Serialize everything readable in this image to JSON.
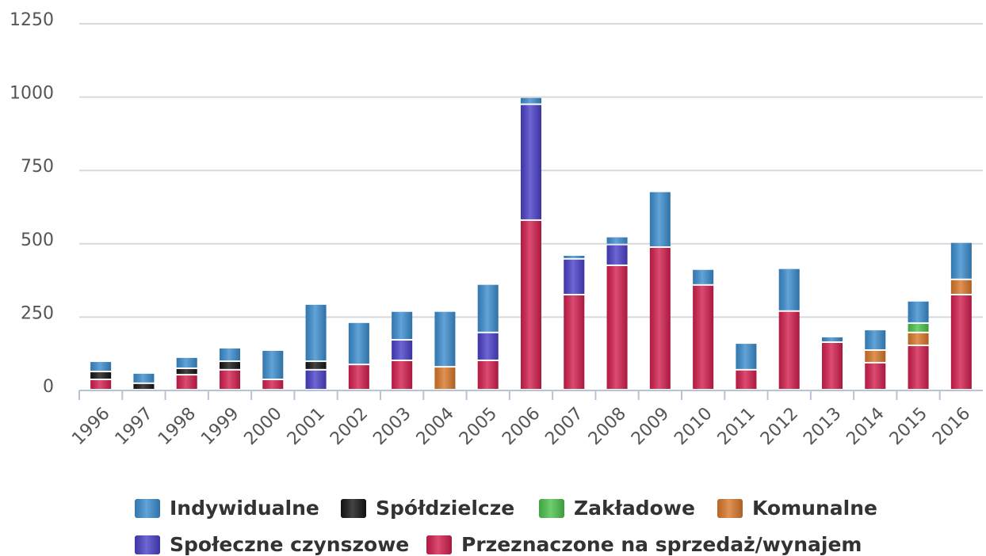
{
  "chart_data": {
    "type": "bar",
    "stacked": true,
    "categories": [
      "1996",
      "1997",
      "1998",
      "1999",
      "2000",
      "2001",
      "2002",
      "2003",
      "2004",
      "2005",
      "2006",
      "2007",
      "2008",
      "2009",
      "2010",
      "2011",
      "2012",
      "2013",
      "2014",
      "2015",
      "2016"
    ],
    "series": [
      {
        "name": "Indywidualne",
        "color": "#3b8dcf",
        "values": [
          35,
          35,
          38,
          46,
          100,
          195,
          144,
          98,
          190,
          165,
          24,
          13,
          27,
          190,
          54,
          91,
          146,
          19,
          70,
          76,
          127
        ]
      },
      {
        "name": "Spółdzielcze",
        "color": "#151515",
        "values": [
          27,
          22,
          22,
          29,
          0,
          29,
          0,
          0,
          0,
          0,
          0,
          0,
          0,
          0,
          0,
          0,
          0,
          0,
          0,
          0,
          0
        ]
      },
      {
        "name": "Zakładowe",
        "color": "#4cc24c",
        "values": [
          0,
          0,
          0,
          0,
          0,
          0,
          0,
          0,
          0,
          0,
          0,
          0,
          0,
          0,
          0,
          0,
          0,
          0,
          0,
          32,
          0
        ]
      },
      {
        "name": "Komunalne",
        "color": "#d9782a",
        "values": [
          0,
          0,
          0,
          0,
          0,
          0,
          0,
          0,
          78,
          0,
          0,
          0,
          0,
          0,
          0,
          0,
          0,
          0,
          43,
          44,
          52
        ]
      },
      {
        "name": "Społeczne czynszowe",
        "color": "#4a40c8",
        "values": [
          0,
          0,
          0,
          0,
          0,
          68,
          0,
          70,
          0,
          95,
          395,
          122,
          71,
          0,
          0,
          0,
          0,
          0,
          0,
          0,
          0
        ]
      },
      {
        "name": "Przeznaczone na sprzedaż/wynajem",
        "color": "#d31f4e",
        "values": [
          35,
          0,
          51,
          68,
          35,
          0,
          86,
          100,
          0,
          100,
          578,
          324,
          424,
          486,
          357,
          68,
          268,
          162,
          92,
          151,
          324
        ]
      }
    ],
    "ylim": [
      0,
      1250
    ],
    "yticks": [
      0,
      250,
      500,
      750,
      1000,
      1250
    ],
    "grid": true
  }
}
